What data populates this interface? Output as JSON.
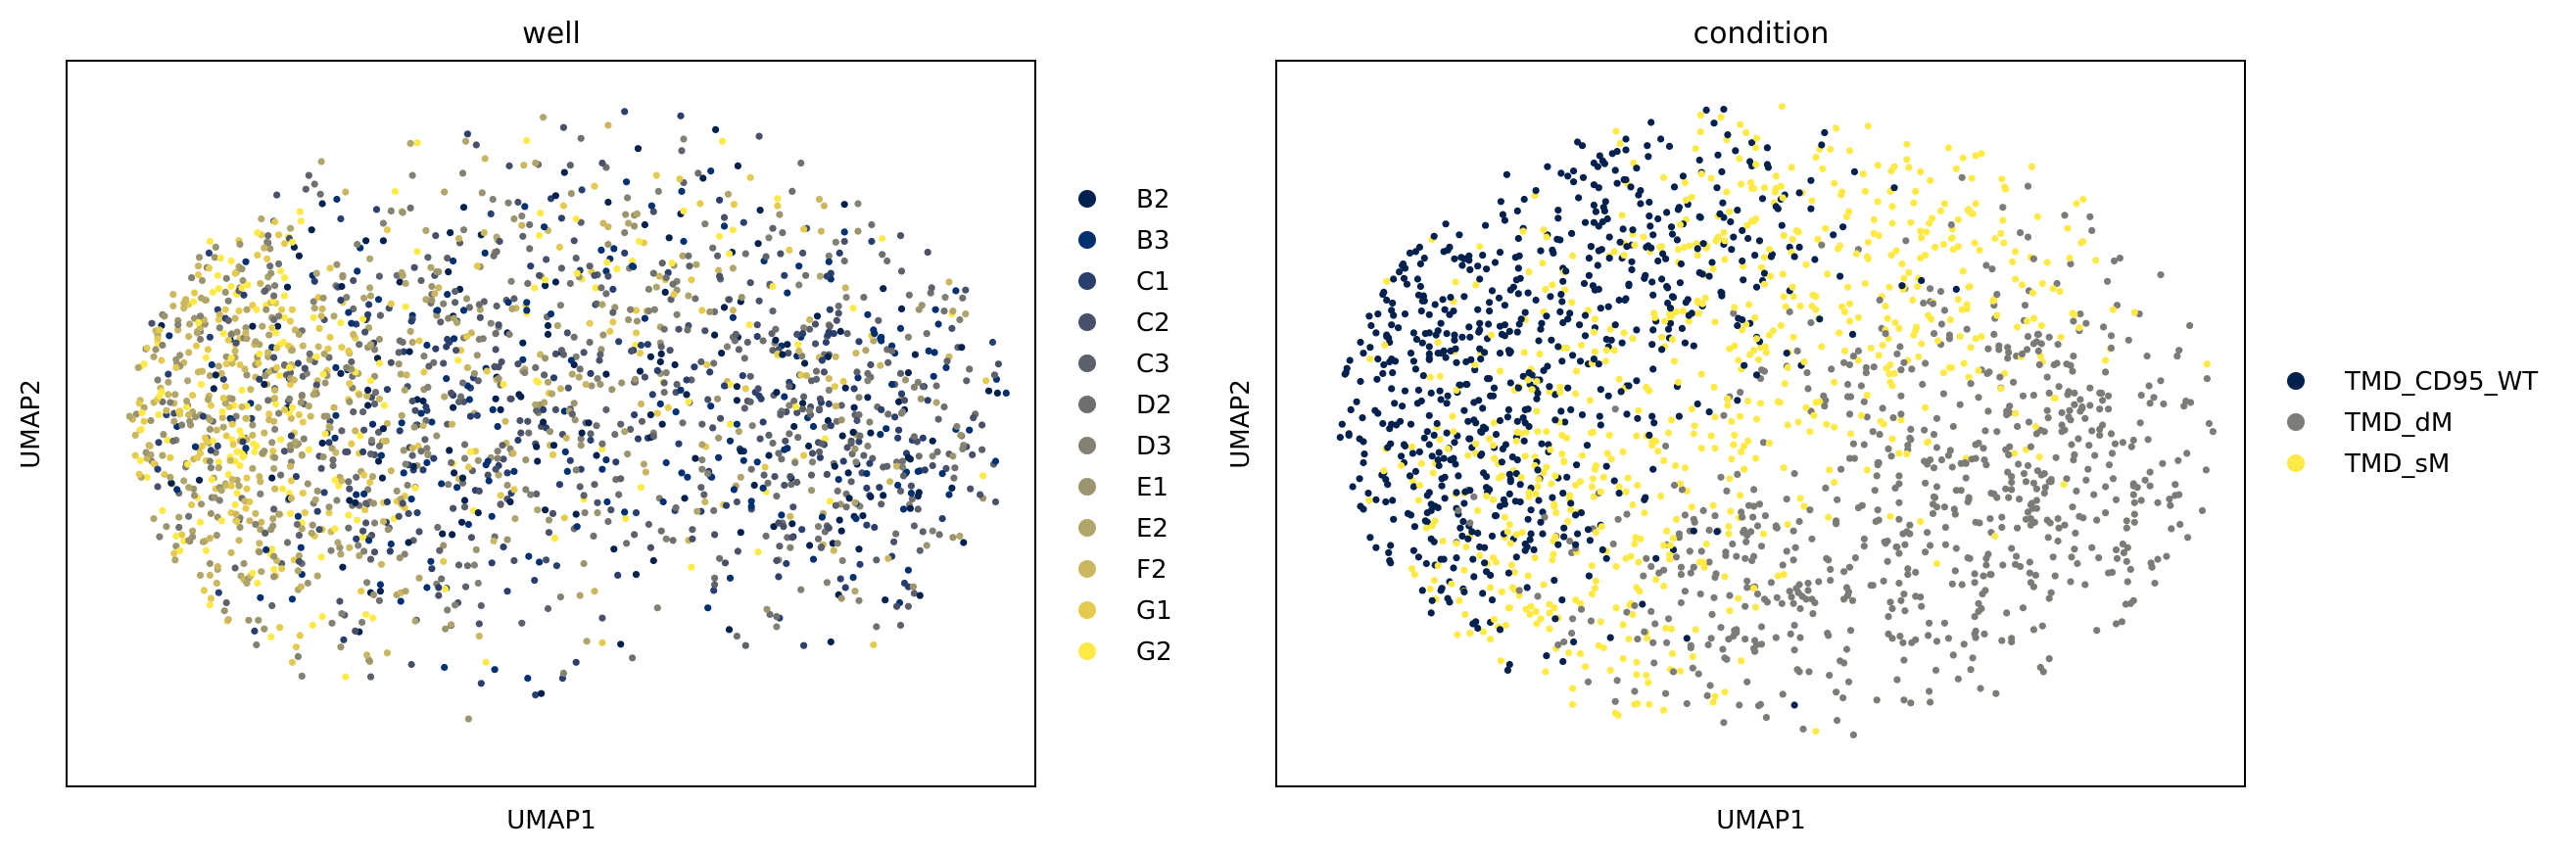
{
  "chart_data": [
    {
      "type": "scatter",
      "title": "well",
      "xlabel": "UMAP1",
      "ylabel": "UMAP2",
      "ticks": "none",
      "grid": false,
      "legend_position": "right",
      "series": [
        {
          "name": "B2",
          "color": "#00204d",
          "points": []
        },
        {
          "name": "B3",
          "color": "#00306f",
          "points": []
        },
        {
          "name": "C1",
          "color": "#2a3f6d",
          "points": []
        },
        {
          "name": "C2",
          "color": "#48506a",
          "points": []
        },
        {
          "name": "C3",
          "color": "#5c616b",
          "points": []
        },
        {
          "name": "D2",
          "color": "#6f6f6f",
          "points": []
        },
        {
          "name": "D3",
          "color": "#838173",
          "points": []
        },
        {
          "name": "E1",
          "color": "#9b946f",
          "points": []
        },
        {
          "name": "E2",
          "color": "#b0a56a",
          "points": []
        },
        {
          "name": "F2",
          "color": "#cbb75f",
          "points": []
        },
        {
          "name": "G1",
          "color": "#e4ca4f",
          "points": []
        },
        {
          "name": "G2",
          "color": "#ffe945",
          "points": []
        }
      ]
    },
    {
      "type": "scatter",
      "title": "condition",
      "xlabel": "UMAP1",
      "ylabel": "UMAP2",
      "ticks": "none",
      "grid": false,
      "legend_position": "right",
      "series": [
        {
          "name": "TMD_CD95_WT",
          "color": "#00204d",
          "points": []
        },
        {
          "name": "TMD_dM",
          "color": "#7c7b78",
          "points": []
        },
        {
          "name": "TMD_sM",
          "color": "#ffe945",
          "points": []
        }
      ]
    }
  ]
}
